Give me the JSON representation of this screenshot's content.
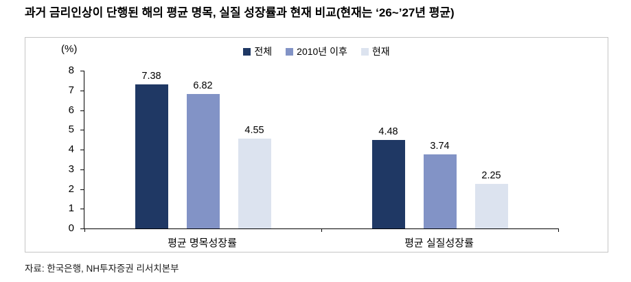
{
  "title": "과거 금리인상이 단행된 해의 평균 명목, 실질 성장률과 현재 비교(현재는 ‘26~’27년 평균)",
  "source": "자료: 한국은행, NH투자증권 리서치본부",
  "chart_data": {
    "type": "bar",
    "title": "과거 금리인상이 단행된 해의 평균 명목, 실질 성장률과 현재 비교(현재는 ‘26~’27년 평균)",
    "unit_label": "(%)",
    "categories": [
      "평균 명목성장률",
      "평균 실질성장률"
    ],
    "series": [
      {
        "name": "전체",
        "color": "#1F3864",
        "values": [
          7.38,
          4.48
        ]
      },
      {
        "name": "2010년 이후",
        "color": "#8293C6",
        "values": [
          6.82,
          3.74
        ]
      },
      {
        "name": "현재",
        "color": "#DCE3EF",
        "values": [
          4.55,
          2.25
        ]
      }
    ],
    "ylim": [
      0,
      8
    ],
    "ytick_step": 1,
    "value_decimals": 2,
    "legend_position": "top",
    "grid": false
  }
}
